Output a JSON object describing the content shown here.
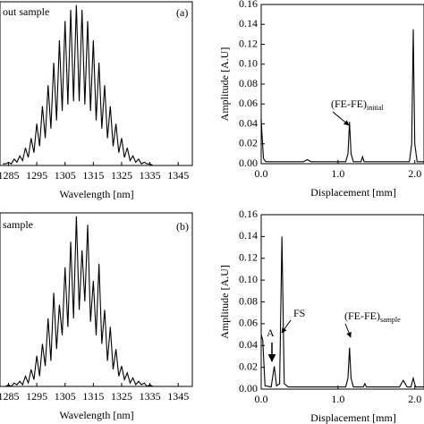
{
  "chart_data": [
    {
      "type": "line",
      "annotations": [
        {
          "text": "out sample"
        },
        {
          "text": "(a)"
        }
      ],
      "xlabel": "Wavelength [nm]",
      "x": [
        1283,
        1284,
        1285,
        1286,
        1287,
        1288,
        1289,
        1290,
        1291,
        1292,
        1293,
        1294,
        1295,
        1296,
        1297,
        1298,
        1299,
        1300,
        1301,
        1302,
        1303,
        1304,
        1305,
        1306,
        1307,
        1308,
        1309,
        1310,
        1311,
        1312,
        1313,
        1314,
        1315,
        1316,
        1317,
        1318,
        1319,
        1320,
        1321,
        1322,
        1323,
        1324,
        1325,
        1326,
        1327,
        1328,
        1329,
        1330,
        1331,
        1332,
        1333,
        1334,
        1335,
        1336,
        1337,
        1338,
        1339
      ],
      "values": [
        0.01,
        0.01,
        0.02,
        0.01,
        0.04,
        0.02,
        0.06,
        0.03,
        0.11,
        0.05,
        0.17,
        0.08,
        0.26,
        0.12,
        0.37,
        0.17,
        0.5,
        0.23,
        0.64,
        0.28,
        0.78,
        0.34,
        0.9,
        0.38,
        0.97,
        0.4,
        1.0,
        0.4,
        0.97,
        0.38,
        0.9,
        0.34,
        0.78,
        0.28,
        0.64,
        0.23,
        0.5,
        0.17,
        0.37,
        0.12,
        0.26,
        0.08,
        0.17,
        0.05,
        0.11,
        0.03,
        0.06,
        0.02,
        0.04,
        0.01,
        0.02,
        0.01,
        0.01,
        0,
        0,
        0,
        0
      ],
      "color": "#000000",
      "xlim": [
        1282,
        1350
      ],
      "ylim": [
        0,
        1.02
      ],
      "xticks": [
        1285,
        1295,
        1305,
        1315,
        1325,
        1335,
        1345
      ]
    },
    {
      "type": "line",
      "annotations": [
        {
          "text": "(FE-FE)",
          "sub": "initial"
        }
      ],
      "xlabel": "Displacement [mm]",
      "ylabel": "Amplitude [A.U]",
      "x": [
        0,
        0.01,
        0.03,
        0.06,
        0.55,
        0.6,
        0.65,
        1.1,
        1.13,
        1.15,
        1.17,
        1.2,
        1.3,
        1.32,
        1.34,
        1.93,
        1.96,
        1.98,
        2.0,
        2.03,
        2.12
      ],
      "values": [
        0.045,
        0.03,
        0.005,
        0.002,
        0.002,
        0.004,
        0.002,
        0.002,
        0.01,
        0.042,
        0.01,
        0.002,
        0.002,
        0.007,
        0.002,
        0.002,
        0.02,
        0.135,
        0.02,
        0.002,
        0.002
      ],
      "color": "#000000",
      "xlim": [
        0,
        2.12
      ],
      "ylim": [
        0,
        0.16
      ],
      "xticks": [
        {
          "value": 0,
          "label": "0.0"
        },
        {
          "value": 1,
          "label": "1.0"
        },
        {
          "value": 2,
          "label": "2.0"
        }
      ],
      "yticks": [
        {
          "value": 0,
          "label": "0.00"
        },
        {
          "value": 0.02,
          "label": "0.02"
        },
        {
          "value": 0.04,
          "label": "0.04"
        },
        {
          "value": 0.06,
          "label": "0.06"
        },
        {
          "value": 0.08,
          "label": "0.08"
        },
        {
          "value": 0.1,
          "label": "0.10"
        },
        {
          "value": 0.12,
          "label": "0.12"
        },
        {
          "value": 0.14,
          "label": "0.14"
        },
        {
          "value": 0.16,
          "label": "0.16"
        }
      ]
    },
    {
      "type": "line",
      "annotations": [
        {
          "text": "sample"
        },
        {
          "text": "(b)"
        }
      ],
      "xlabel": "Wavelength [nm]",
      "x": [
        1283,
        1284,
        1285,
        1286,
        1287,
        1288,
        1289,
        1290,
        1291,
        1292,
        1293,
        1294,
        1295,
        1296,
        1297,
        1298,
        1299,
        1300,
        1301,
        1302,
        1303,
        1304,
        1305,
        1306,
        1307,
        1308,
        1309,
        1310,
        1311,
        1312,
        1313,
        1314,
        1315,
        1316,
        1317,
        1318,
        1319,
        1320,
        1321,
        1322,
        1323,
        1324,
        1325,
        1326,
        1327,
        1328,
        1329,
        1330,
        1331,
        1332,
        1333,
        1334,
        1335,
        1336,
        1337,
        1338,
        1339
      ],
      "values": [
        0,
        0,
        0.01,
        0,
        0.02,
        0.01,
        0.03,
        0.01,
        0.06,
        0.02,
        0.1,
        0.04,
        0.18,
        0.06,
        0.25,
        0.12,
        0.4,
        0.15,
        0.55,
        0.22,
        0.48,
        0.3,
        0.7,
        0.35,
        0.85,
        0.4,
        1.0,
        0.45,
        0.8,
        0.5,
        0.95,
        0.38,
        0.62,
        0.3,
        0.72,
        0.25,
        0.45,
        0.15,
        0.35,
        0.1,
        0.22,
        0.06,
        0.12,
        0.04,
        0.08,
        0.02,
        0.05,
        0.01,
        0.03,
        0.01,
        0.02,
        0,
        0.01,
        0,
        0,
        0,
        0
      ],
      "color": "#000000",
      "xlim": [
        1282,
        1350
      ],
      "ylim": [
        0,
        1.02
      ],
      "xticks": [
        1285,
        1295,
        1305,
        1315,
        1325,
        1335,
        1345
      ]
    },
    {
      "type": "line",
      "annotations": [
        {
          "text": "A"
        },
        {
          "text": "FS"
        },
        {
          "text": "(FE-FE)",
          "sub": "sample"
        }
      ],
      "xlabel": "Displacement [mm]",
      "ylabel": "Amplitude [A.U]",
      "x": [
        0,
        0.02,
        0.05,
        0.13,
        0.17,
        0.2,
        0.24,
        0.27,
        0.3,
        0.35,
        1.1,
        1.13,
        1.15,
        1.17,
        1.2,
        1.33,
        1.35,
        1.37,
        1.8,
        1.85,
        1.9,
        1.95,
        1.98,
        2.01,
        2.12
      ],
      "values": [
        0.05,
        0.045,
        0.003,
        0.002,
        0.021,
        0.003,
        0.005,
        0.14,
        0.005,
        0.002,
        0.002,
        0.01,
        0.038,
        0.01,
        0.002,
        0.002,
        0.005,
        0.002,
        0.002,
        0.008,
        0.002,
        0.002,
        0.01,
        0.002,
        0.002
      ],
      "color": "#000000",
      "xlim": [
        0,
        2.12
      ],
      "ylim": [
        0,
        0.16
      ],
      "xticks": [
        {
          "value": 0,
          "label": "0.0"
        },
        {
          "value": 1,
          "label": "1.0"
        },
        {
          "value": 2,
          "label": "2.0"
        }
      ],
      "yticks": [
        {
          "value": 0,
          "label": "0.00"
        },
        {
          "value": 0.02,
          "label": "0.02"
        },
        {
          "value": 0.04,
          "label": "0.04"
        },
        {
          "value": 0.06,
          "label": "0.06"
        },
        {
          "value": 0.08,
          "label": "0.08"
        },
        {
          "value": 0.1,
          "label": "0.10"
        },
        {
          "value": 0.12,
          "label": "0.12"
        },
        {
          "value": 0.14,
          "label": "0.14"
        },
        {
          "value": 0.16,
          "label": "0.16"
        }
      ]
    }
  ]
}
